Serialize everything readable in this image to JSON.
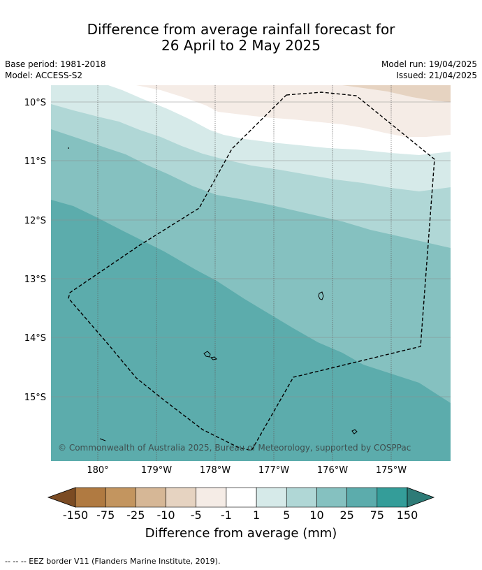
{
  "title": {
    "line1": "Difference from average rainfall forecast for",
    "line2": "26 April to 2 May 2025"
  },
  "meta": {
    "base_period": "Base period: 1981-2018",
    "model": "Model: ACCESS-S2",
    "model_run": "Model run: 19/04/2025",
    "issued": "Issued: 21/04/2025"
  },
  "map": {
    "lat_labels": [
      "10°S",
      "11°S",
      "12°S",
      "13°S",
      "14°S",
      "15°S"
    ],
    "lon_labels": [
      "180°",
      "179°W",
      "178°W",
      "177°W",
      "176°W",
      "175°W"
    ],
    "copyright": "© Commonwealth of Australia 2025, Bureau of Meteorology, supported by COSPPac",
    "islands": [
      "Wallis",
      "Futuna",
      "Alofi"
    ]
  },
  "colorbar": {
    "title": "Difference from average (mm)",
    "ticks": [
      "-150",
      "-75",
      "-25",
      "-10",
      "-5",
      "-1",
      "1",
      "5",
      "10",
      "25",
      "75",
      "150"
    ],
    "colors": [
      "#7b4b23",
      "#b07a41",
      "#c3955f",
      "#d6b796",
      "#e6d3c1",
      "#f5ece6",
      "#ffffff",
      "#d6eae9",
      "#b0d7d6",
      "#85c1c0",
      "#5cacac",
      "#349d99",
      "#2e7b77"
    ]
  },
  "footer": "--  --  -- EEZ border V11 (Flanders Marine Institute, 2019)."
}
